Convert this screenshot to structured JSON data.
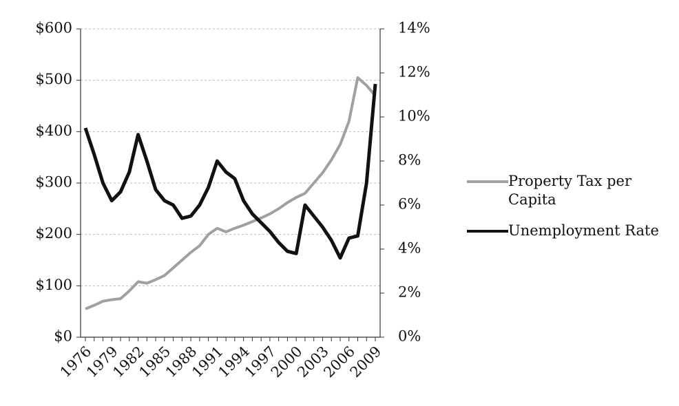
{
  "chart_data": {
    "type": "line",
    "categories": [
      "1976",
      null,
      null,
      "1979",
      null,
      null,
      "1982",
      null,
      null,
      "1985",
      null,
      null,
      "1988",
      null,
      null,
      "1991",
      null,
      null,
      "1994",
      null,
      null,
      "1997",
      null,
      null,
      "2000",
      null,
      null,
      "2003",
      null,
      null,
      "2006",
      null,
      null,
      "2009"
    ],
    "series": [
      {
        "name": "Property Tax per Capita",
        "color": "#a0a0a0",
        "values": [
          55,
          62,
          70,
          73,
          75,
          90,
          108,
          105,
          112,
          120,
          135,
          150,
          165,
          178,
          200,
          212,
          205,
          212,
          218,
          225,
          232,
          240,
          250,
          262,
          272,
          280,
          300,
          320,
          345,
          375,
          420,
          505,
          490,
          470
        ]
      },
      {
        "name": "Unemployment Rate",
        "color": "#111111",
        "axis": "y2",
        "values": [
          9.5,
          8.3,
          7.0,
          6.2,
          6.6,
          7.5,
          9.2,
          8.0,
          6.7,
          6.2,
          6.0,
          5.4,
          5.5,
          6.0,
          6.8,
          8.0,
          7.5,
          7.2,
          6.2,
          5.6,
          5.2,
          4.8,
          4.3,
          3.9,
          3.8,
          6.0,
          5.5,
          5.0,
          4.4,
          3.6,
          4.5,
          4.6,
          7.0,
          11.5
        ]
      }
    ],
    "ylim": [
      0,
      600
    ],
    "yticks": [
      {
        "value": 0,
        "label": "$0"
      },
      {
        "value": 100,
        "label": "$100"
      },
      {
        "value": 200,
        "label": "$200"
      },
      {
        "value": 300,
        "label": "$300"
      },
      {
        "value": 400,
        "label": "$400"
      },
      {
        "value": 500,
        "label": "$500"
      },
      {
        "value": 600,
        "label": "$600"
      }
    ],
    "y2lim": [
      0,
      14
    ],
    "y2ticks": [
      {
        "value": 0,
        "label": "0%"
      },
      {
        "value": 2,
        "label": "2%"
      },
      {
        "value": 4,
        "label": "4%"
      },
      {
        "value": 6,
        "label": "6%"
      },
      {
        "value": 8,
        "label": "8%"
      },
      {
        "value": 10,
        "label": "10%"
      },
      {
        "value": 12,
        "label": "12%"
      },
      {
        "value": 14,
        "label": "14%"
      }
    ],
    "grid": true,
    "legend": "right"
  }
}
